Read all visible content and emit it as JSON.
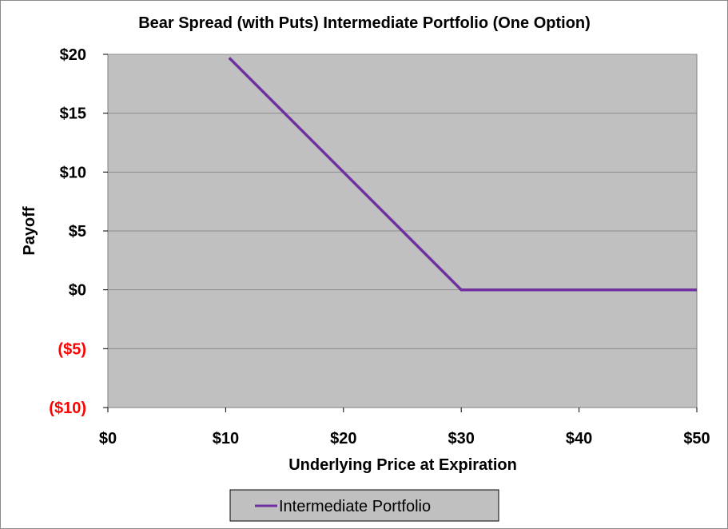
{
  "chart_data": {
    "type": "line",
    "title": "Bear Spread (with Puts) Intermediate Portfolio (One Option)",
    "xlabel": "Underlying Price at Expiration",
    "ylabel": "Payoff",
    "xlim": [
      0,
      50
    ],
    "ylim": [
      -10,
      20
    ],
    "x_ticks": [
      {
        "value": 0,
        "label": "$0"
      },
      {
        "value": 10,
        "label": "$10"
      },
      {
        "value": 20,
        "label": "$20"
      },
      {
        "value": 30,
        "label": "$30"
      },
      {
        "value": 40,
        "label": "$40"
      },
      {
        "value": 50,
        "label": "$50"
      }
    ],
    "y_ticks": [
      {
        "value": 20,
        "label": "$20",
        "color": "#000000"
      },
      {
        "value": 15,
        "label": "$15",
        "color": "#000000"
      },
      {
        "value": 10,
        "label": "$10",
        "color": "#000000"
      },
      {
        "value": 5,
        "label": "$5",
        "color": "#000000"
      },
      {
        "value": 0,
        "label": "$0",
        "color": "#000000"
      },
      {
        "value": -5,
        "label": "($5)",
        "color": "#ff0000"
      },
      {
        "value": -10,
        "label": "($10)",
        "color": "#ff0000"
      }
    ],
    "grid": true,
    "legend_position": "bottom",
    "plot_background": "#c0c0c0",
    "series": [
      {
        "name": "Intermediate Portfolio",
        "color": "#7030a0",
        "points": [
          [
            10.3,
            19.7
          ],
          [
            30,
            0
          ],
          [
            50,
            0
          ]
        ]
      }
    ]
  }
}
